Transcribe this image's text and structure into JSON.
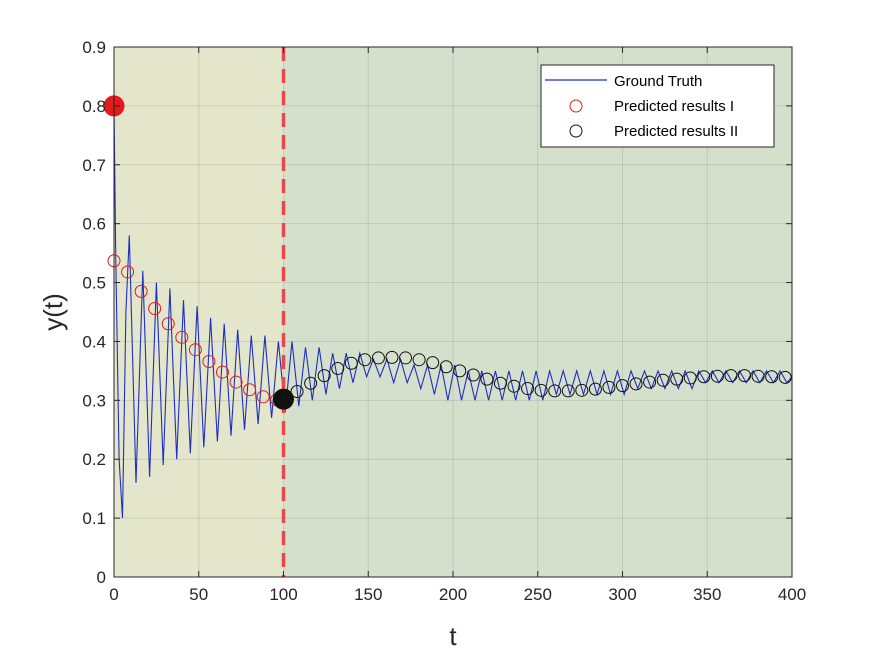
{
  "chart_data": {
    "type": "line",
    "title": "",
    "xlabel": "t",
    "ylabel": "y(t)",
    "xlim": [
      0,
      400
    ],
    "ylim": [
      0,
      0.9
    ],
    "xticks": [
      "0",
      "50",
      "100",
      "150",
      "200",
      "250",
      "300",
      "350",
      "400"
    ],
    "yticks": [
      "0",
      "0.1",
      "0.2",
      "0.3",
      "0.4",
      "0.5",
      "0.6",
      "0.7",
      "0.8",
      "0.9"
    ],
    "grid": true,
    "legend_position": "top-right",
    "divider_t": 100,
    "regions": [
      {
        "from": 0,
        "to": 100,
        "color": "#e4e6cc"
      },
      {
        "from": 100,
        "to": 400,
        "color": "#d5e0cc"
      }
    ],
    "colors": {
      "ground_truth": "#1f2fbf",
      "predicted_1": "#e41a1c",
      "predicted_2": "#111111",
      "divider": "#e8474b"
    },
    "series": [
      {
        "name": "Ground Truth",
        "kind": "line",
        "x": [
          0,
          1,
          3,
          5,
          7,
          9,
          13,
          17,
          21,
          25,
          29,
          33,
          37,
          41,
          45,
          49,
          53,
          57,
          61,
          65,
          69,
          73,
          77,
          81,
          85,
          89,
          93,
          97,
          101,
          105,
          109,
          113,
          117,
          121,
          125,
          129,
          133,
          137,
          141,
          145,
          149,
          153,
          157,
          161,
          165,
          169,
          173,
          177,
          181,
          185,
          189,
          193,
          197,
          201,
          205,
          209,
          213,
          217,
          221,
          225,
          229,
          233,
          237,
          241,
          245,
          249,
          253,
          257,
          261,
          265,
          269,
          273,
          277,
          281,
          285,
          289,
          293,
          297,
          301,
          305,
          309,
          313,
          317,
          321,
          325,
          329,
          333,
          337,
          341,
          345,
          349,
          353,
          357,
          361,
          365,
          369,
          373,
          377,
          381,
          385,
          389,
          393,
          397,
          400
        ],
        "y": [
          0.8,
          0.55,
          0.2,
          0.1,
          0.45,
          0.58,
          0.16,
          0.52,
          0.17,
          0.5,
          0.19,
          0.49,
          0.2,
          0.47,
          0.21,
          0.46,
          0.22,
          0.44,
          0.23,
          0.43,
          0.24,
          0.42,
          0.25,
          0.41,
          0.26,
          0.41,
          0.27,
          0.4,
          0.28,
          0.4,
          0.29,
          0.39,
          0.3,
          0.39,
          0.31,
          0.38,
          0.32,
          0.38,
          0.33,
          0.38,
          0.34,
          0.37,
          0.34,
          0.37,
          0.33,
          0.37,
          0.33,
          0.36,
          0.32,
          0.36,
          0.31,
          0.36,
          0.3,
          0.36,
          0.3,
          0.35,
          0.3,
          0.35,
          0.3,
          0.35,
          0.3,
          0.35,
          0.3,
          0.35,
          0.3,
          0.35,
          0.3,
          0.35,
          0.31,
          0.35,
          0.31,
          0.35,
          0.31,
          0.35,
          0.31,
          0.35,
          0.31,
          0.35,
          0.31,
          0.35,
          0.32,
          0.35,
          0.32,
          0.35,
          0.32,
          0.35,
          0.32,
          0.35,
          0.32,
          0.35,
          0.33,
          0.35,
          0.33,
          0.35,
          0.33,
          0.35,
          0.33,
          0.35,
          0.33,
          0.35,
          0.33,
          0.35,
          0.33,
          0.34
        ]
      },
      {
        "name": "Predicted results I",
        "kind": "markers",
        "x": [
          0,
          8,
          16,
          24,
          32,
          40,
          48,
          56,
          64,
          72,
          80,
          88,
          96
        ],
        "y": [
          0.537,
          0.518,
          0.485,
          0.456,
          0.43,
          0.407,
          0.386,
          0.366,
          0.348,
          0.331,
          0.318,
          0.306,
          0.301
        ]
      },
      {
        "name": "Predicted results II",
        "kind": "markers",
        "x": [
          108,
          116,
          124,
          132,
          140,
          148,
          156,
          164,
          172,
          180,
          188,
          196,
          204,
          212,
          220,
          228,
          236,
          244,
          252,
          260,
          268,
          276,
          284,
          292,
          300,
          308,
          316,
          324,
          332,
          340,
          348,
          356,
          364,
          372,
          380,
          388,
          396
        ],
        "y": [
          0.315,
          0.329,
          0.342,
          0.354,
          0.363,
          0.369,
          0.372,
          0.373,
          0.372,
          0.369,
          0.364,
          0.357,
          0.35,
          0.343,
          0.336,
          0.329,
          0.324,
          0.32,
          0.317,
          0.316,
          0.316,
          0.317,
          0.319,
          0.322,
          0.325,
          0.328,
          0.331,
          0.334,
          0.336,
          0.338,
          0.34,
          0.341,
          0.342,
          0.342,
          0.341,
          0.34,
          0.339
        ]
      }
    ],
    "highlight_points": [
      {
        "series": "Predicted results I",
        "x": 0,
        "y": 0.8
      },
      {
        "series": "Predicted results II",
        "x": 100,
        "y": 0.302
      }
    ]
  }
}
